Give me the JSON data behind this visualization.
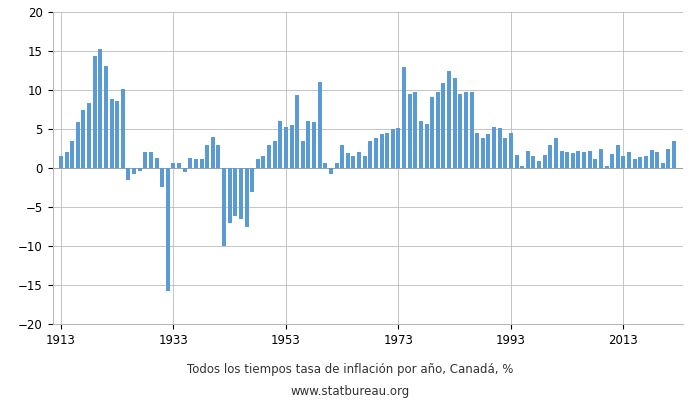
{
  "title": "Todos los tiempos tasa de inflación por año, Canadá, %",
  "subtitle": "www.statbureau.org",
  "bar_color": "#5b9bd5",
  "background_color": "#ffffff",
  "grid_color": "#bbbbbb",
  "xlim": [
    1911.5,
    2023.5
  ],
  "ylim": [
    -20,
    20
  ],
  "yticks": [
    -20,
    -15,
    -10,
    -5,
    0,
    5,
    10,
    15,
    20
  ],
  "xticks": [
    1913,
    1933,
    1953,
    1973,
    1993,
    2013
  ],
  "data": {
    "1913": 1.5,
    "1914": 2.0,
    "1915": 3.4,
    "1916": 5.9,
    "1917": 7.5,
    "1918": 8.3,
    "1919": 14.4,
    "1920": 15.3,
    "1921": 13.1,
    "1922": 8.8,
    "1923": 8.6,
    "1924": 10.1,
    "1925": -1.5,
    "1926": -0.8,
    "1927": -0.4,
    "1928": 2.0,
    "1929": 2.0,
    "1930": 1.3,
    "1931": -2.4,
    "1932": -15.8,
    "1933": 0.6,
    "1934": 0.6,
    "1935": -0.5,
    "1936": 1.3,
    "1937": 1.2,
    "1938": 1.2,
    "1939": 3.0,
    "1940": 4.0,
    "1941": 3.0,
    "1942": -10.0,
    "1943": -7.0,
    "1944": -6.2,
    "1945": -6.5,
    "1946": -7.5,
    "1947": -3.1,
    "1948": 1.1,
    "1949": 1.5,
    "1950": 3.0,
    "1951": 3.5,
    "1952": 6.0,
    "1953": 5.3,
    "1954": 5.5,
    "1955": 9.3,
    "1956": 3.4,
    "1957": 6.0,
    "1958": 5.9,
    "1959": 11.0,
    "1960": 0.7,
    "1961": -0.8,
    "1962": 0.6,
    "1963": 3.0,
    "1964": 1.9,
    "1965": 1.5,
    "1966": 2.0,
    "1967": 1.6,
    "1968": 3.5,
    "1969": 3.8,
    "1970": 4.4,
    "1971": 4.5,
    "1972": 5.0,
    "1973": 5.1,
    "1974": 13.0,
    "1975": 9.5,
    "1976": 9.8,
    "1977": 6.0,
    "1978": 5.7,
    "1979": 9.1,
    "1980": 9.8,
    "1981": 10.9,
    "1982": 12.4,
    "1983": 11.6,
    "1984": 9.5,
    "1985": 9.7,
    "1986": 9.8,
    "1987": 4.5,
    "1988": 3.9,
    "1989": 4.3,
    "1990": 5.2,
    "1991": 5.1,
    "1992": 3.8,
    "1993": 4.5,
    "1994": 1.7,
    "1995": 0.2,
    "1996": 2.2,
    "1997": 1.6,
    "1998": 0.9,
    "1999": 1.7,
    "2000": 3.0,
    "2001": 3.9,
    "2002": 2.2,
    "2003": 2.0,
    "2004": 1.9,
    "2005": 2.2,
    "2006": 2.0,
    "2007": 2.2,
    "2008": 1.1,
    "2009": 2.4,
    "2010": 0.3,
    "2011": 1.8,
    "2012": 2.9,
    "2013": 1.5,
    "2014": 2.0,
    "2015": 1.1,
    "2016": 1.4,
    "2017": 1.6,
    "2018": 2.3,
    "2019": 2.0,
    "2020": 0.7,
    "2021": 2.4,
    "2022": 3.4
  }
}
